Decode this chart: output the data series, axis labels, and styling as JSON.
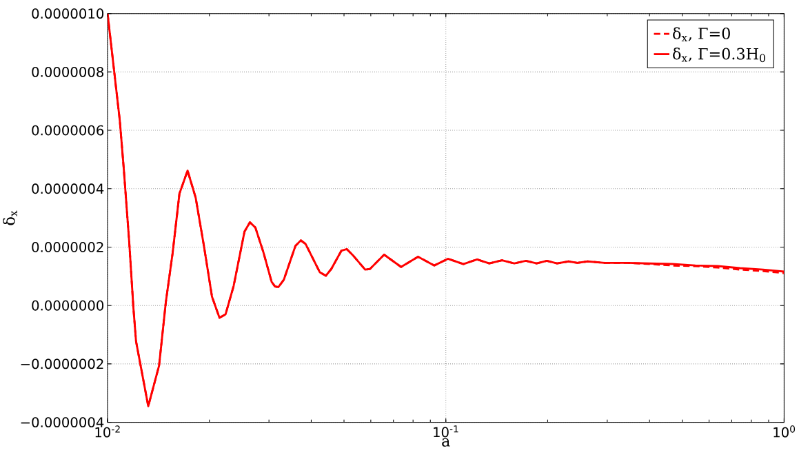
{
  "chart_data": {
    "type": "line",
    "xlabel": "a",
    "ylabel": "δ$_{x}$",
    "log": "x",
    "grid": true,
    "legend": "top right",
    "xlim": [
      0.01,
      1
    ],
    "ylim": [
      -4e-07,
      1e-06
    ],
    "xticks": [
      {
        "value": 0.01,
        "label": "10$^{-2}$"
      },
      {
        "value": 0.1,
        "label": "10$^{-1}$"
      },
      {
        "value": 1,
        "label": "10$^{0}$"
      }
    ],
    "yticks": [
      {
        "value": -4e-07,
        "label": "−0.0000004"
      },
      {
        "value": -2e-07,
        "label": "−0.0000002"
      },
      {
        "value": 0,
        "label": "0.0000000"
      },
      {
        "value": 2e-07,
        "label": "0.0000002"
      },
      {
        "value": 4e-07,
        "label": "0.0000004"
      },
      {
        "value": 6e-07,
        "label": "0.0000006"
      },
      {
        "value": 8e-07,
        "label": "0.0000008"
      },
      {
        "value": 1e-06,
        "label": "0.0000010"
      }
    ],
    "series": [
      {
        "name": "δ$_{x}$, Γ=0",
        "color": "#ff0000",
        "line_style": "dashed",
        "x": [
          0.01,
          0.01087,
          0.01117,
          0.01159,
          0.01192,
          0.01214,
          0.01259,
          0.01319,
          0.0142,
          0.01487,
          0.01557,
          0.01631,
          0.01724,
          0.01822,
          0.01926,
          0.02036,
          0.02142,
          0.02233,
          0.02359,
          0.0254,
          0.02635,
          0.02735,
          0.02891,
          0.03055,
          0.03126,
          0.03199,
          0.03319,
          0.03592,
          0.03727,
          0.03849,
          0.0424,
          0.04419,
          0.04585,
          0.04914,
          0.05099,
          0.0534,
          0.05773,
          0.05965,
          0.06571,
          0.07375,
          0.08277,
          0.09246,
          0.1014,
          0.1127,
          0.1237,
          0.1344,
          0.1466,
          0.1594,
          0.1724,
          0.1856,
          0.1989,
          0.2132,
          0.2305,
          0.2448,
          0.2624,
          0.2944,
          0.3444,
          0.4011,
          0.467,
          0.5464,
          0.6362,
          0.7407,
          0.8668,
          1.0
        ],
        "values": [
          1e-06,
          6.33e-07,
          4.66e-07,
          2.16e-07,
          -7e-09,
          -1.23e-07,
          -2.2e-07,
          -3.45e-07,
          -2.06e-07,
          1.2e-08,
          1.79e-07,
          3.83e-07,
          4.62e-07,
          3.69e-07,
          2.06e-07,
          3e-08,
          -4.2e-08,
          -3e-08,
          6.7e-08,
          2.53e-07,
          2.85e-07,
          2.67e-07,
          1.81e-07,
          8.1e-08,
          6.5e-08,
          6.3e-08,
          8.8e-08,
          2.04e-07,
          2.23e-07,
          2.11e-07,
          1.14e-07,
          1.02e-07,
          1.25e-07,
          1.88e-07,
          1.93e-07,
          1.69e-07,
          1.23e-07,
          1.25e-07,
          1.74e-07,
          1.32e-07,
          1.67e-07,
          1.37e-07,
          1.6e-07,
          1.42e-07,
          1.58e-07,
          1.44e-07,
          1.55e-07,
          1.44e-07,
          1.53e-07,
          1.44e-07,
          1.53e-07,
          1.44e-07,
          1.51e-07,
          1.46e-07,
          1.51e-07,
          1.46e-07,
          1.46e-07,
          1.42e-07,
          1.37e-07,
          1.35e-07,
          1.3e-07,
          1.23e-07,
          1.18e-07,
          1.11e-07
        ]
      },
      {
        "name": "δ$_{x}$, Γ=0.3H$_{0}$",
        "color": "#ff0000",
        "line_style": "solid",
        "x": [
          0.01,
          0.01087,
          0.01117,
          0.01159,
          0.01192,
          0.01214,
          0.01259,
          0.01319,
          0.0142,
          0.01487,
          0.01557,
          0.01631,
          0.01724,
          0.01822,
          0.01926,
          0.02036,
          0.02142,
          0.02233,
          0.02359,
          0.0254,
          0.02635,
          0.02735,
          0.02891,
          0.03055,
          0.03126,
          0.03199,
          0.03319,
          0.03592,
          0.03727,
          0.03849,
          0.0424,
          0.04419,
          0.04585,
          0.04914,
          0.05099,
          0.0534,
          0.05773,
          0.05965,
          0.06571,
          0.07375,
          0.08277,
          0.09246,
          0.1014,
          0.1127,
          0.1237,
          0.1344,
          0.1466,
          0.1594,
          0.1724,
          0.1856,
          0.1989,
          0.2132,
          0.2305,
          0.2448,
          0.2624,
          0.2944,
          0.3444,
          0.4011,
          0.467,
          0.5464,
          0.6362,
          0.7407,
          0.8668,
          1.0
        ],
        "values": [
          1e-06,
          6.33e-07,
          4.66e-07,
          2.16e-07,
          -7e-09,
          -1.23e-07,
          -2.2e-07,
          -3.45e-07,
          -2.06e-07,
          1.2e-08,
          1.79e-07,
          3.83e-07,
          4.62e-07,
          3.69e-07,
          2.06e-07,
          3e-08,
          -4.2e-08,
          -3e-08,
          6.7e-08,
          2.53e-07,
          2.85e-07,
          2.67e-07,
          1.81e-07,
          8.1e-08,
          6.5e-08,
          6.3e-08,
          8.8e-08,
          2.04e-07,
          2.23e-07,
          2.11e-07,
          1.14e-07,
          1.02e-07,
          1.25e-07,
          1.88e-07,
          1.93e-07,
          1.69e-07,
          1.23e-07,
          1.25e-07,
          1.74e-07,
          1.32e-07,
          1.67e-07,
          1.37e-07,
          1.6e-07,
          1.42e-07,
          1.58e-07,
          1.44e-07,
          1.55e-07,
          1.44e-07,
          1.53e-07,
          1.44e-07,
          1.53e-07,
          1.44e-07,
          1.51e-07,
          1.46e-07,
          1.51e-07,
          1.46e-07,
          1.46e-07,
          1.44e-07,
          1.42e-07,
          1.37e-07,
          1.35e-07,
          1.28e-07,
          1.23e-07,
          1.16e-07
        ]
      }
    ]
  }
}
